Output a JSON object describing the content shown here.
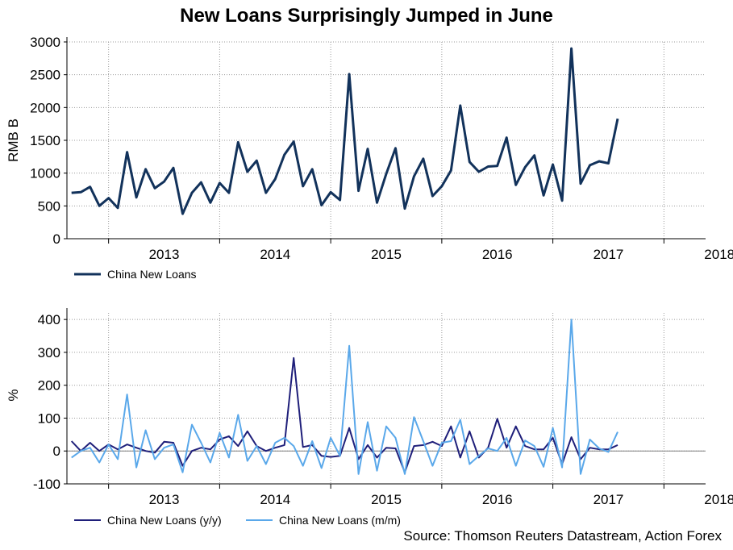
{
  "title": "New Loans Surprisingly Jumped in June",
  "source": "Source: Thomson Reuters Datastream, Action Forex",
  "colors": {
    "dark_navy": "#12325b",
    "navy": "#1f1f7a",
    "light_blue": "#5aa8ea",
    "grid": "#9a9a9a",
    "zero_line": "#808080"
  },
  "chart_data": [
    {
      "type": "line",
      "title": "",
      "xlabel": "",
      "ylabel": "RMB B",
      "ylim": [
        0,
        3000
      ],
      "yticks": [
        0,
        500,
        1000,
        1500,
        2000,
        2500,
        3000
      ],
      "xlim": [
        2012.625,
        2018.375
      ],
      "year_labels": [
        "2013",
        "2014",
        "2015",
        "2016",
        "2017",
        "2018"
      ],
      "grid": true,
      "legend": "bottom-left",
      "x_start": "2012-09",
      "series": [
        {
          "name": "China New Loans",
          "color": "#12325b",
          "values": [
            700,
            710,
            790,
            500,
            620,
            470,
            1320,
            630,
            1060,
            770,
            870,
            1080,
            380,
            700,
            860,
            550,
            850,
            700,
            1470,
            1020,
            1190,
            700,
            910,
            1280,
            1480,
            800,
            1060,
            510,
            710,
            590,
            2510,
            730,
            1370,
            550,
            990,
            1380,
            460,
            950,
            1220,
            650,
            800,
            1040,
            2030,
            1170,
            1020,
            1100,
            1110,
            1540,
            820,
            1090,
            1270,
            660,
            1130,
            580,
            2900,
            840,
            1120,
            1180,
            1150,
            1830
          ]
        }
      ]
    },
    {
      "type": "line",
      "title": "",
      "xlabel": "",
      "ylabel": "%",
      "ylim": [
        -100,
        420
      ],
      "yticks": [
        -100,
        0,
        100,
        200,
        300,
        400
      ],
      "xlim": [
        2012.625,
        2018.375
      ],
      "year_labels": [
        "2013",
        "2014",
        "2015",
        "2016",
        "2017",
        "2018"
      ],
      "grid": true,
      "legend": "bottom-left",
      "x_start": "2012-09",
      "series": [
        {
          "name": "China New Loans (y/y)",
          "color": "#1f1f7a",
          "values": [
            30,
            0,
            25,
            0,
            20,
            5,
            20,
            10,
            0,
            -5,
            28,
            25,
            -45,
            0,
            10,
            5,
            35,
            45,
            15,
            60,
            15,
            0,
            10,
            18,
            283,
            12,
            18,
            -15,
            -18,
            -15,
            70,
            -25,
            18,
            -20,
            10,
            8,
            -65,
            15,
            18,
            28,
            15,
            75,
            -20,
            60,
            -20,
            10,
            98,
            10,
            75,
            15,
            5,
            5,
            40,
            -40,
            42,
            -25,
            10,
            5,
            5,
            18
          ]
        },
        {
          "name": "China New Loans (m/m)",
          "color": "#5aa8ea",
          "values": [
            -20,
            0,
            10,
            -35,
            20,
            -25,
            172,
            -50,
            63,
            -25,
            10,
            20,
            -65,
            80,
            25,
            -35,
            55,
            -20,
            110,
            -30,
            15,
            -40,
            25,
            40,
            15,
            -45,
            30,
            -52,
            40,
            -15,
            320,
            -70,
            88,
            -60,
            75,
            40,
            -70,
            103,
            30,
            -45,
            25,
            30,
            95,
            -40,
            -15,
            8,
            0,
            40,
            -45,
            32,
            15,
            -48,
            70,
            -50,
            400,
            -70,
            35,
            8,
            -3,
            58
          ]
        }
      ]
    }
  ]
}
